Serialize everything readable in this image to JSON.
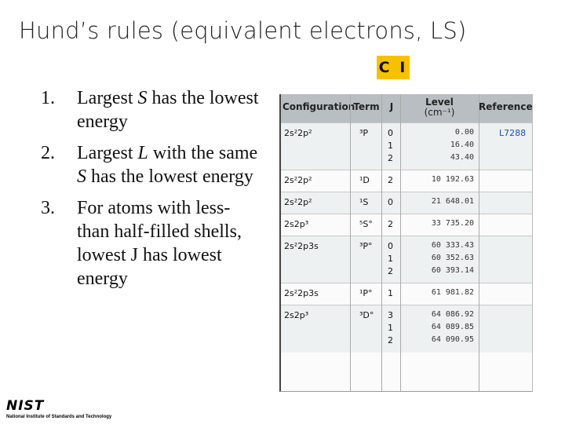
{
  "slide": {
    "title": "Hund’s rules (equivalent electrons, LS)",
    "element_badge": "C I",
    "badge_color": "#f6c200"
  },
  "rules": [
    {
      "num": "1.",
      "pre": "Largest ",
      "var": "S",
      "post": " has the lowest energy"
    },
    {
      "num": "2.",
      "pre": "Largest ",
      "var": "L",
      "mid": " with the same ",
      "var2": "S",
      "post": " has the lowest energy"
    },
    {
      "num": "3.",
      "text": "For atoms with less-than half-filled shells, lowest J has lowest energy"
    }
  ],
  "table": {
    "headers": {
      "configuration": "Configuration",
      "term": "Term",
      "j": "J",
      "level": "Level",
      "level_unit": "(cm⁻¹)",
      "reference": "Reference"
    },
    "rows": [
      {
        "config": "2s²2p²",
        "term": "³P",
        "j": [
          "0",
          "1",
          "2"
        ],
        "level": [
          "0.00",
          "16.40",
          "43.40"
        ],
        "ref": "L7288"
      },
      {
        "config": "2s²2p²",
        "term": "¹D",
        "j": [
          "2"
        ],
        "level": [
          "10 192.63"
        ],
        "ref": ""
      },
      {
        "config": "2s²2p²",
        "term": "¹S",
        "j": [
          "0"
        ],
        "level": [
          "21 648.01"
        ],
        "ref": ""
      },
      {
        "config": "2s2p³",
        "term": "⁵S°",
        "j": [
          "2"
        ],
        "level": [
          "33 735.20"
        ],
        "ref": ""
      },
      {
        "config": "2s²2p3s",
        "term": "³P°",
        "j": [
          "0",
          "1",
          "2"
        ],
        "level": [
          "60 333.43",
          "60 352.63",
          "60 393.14"
        ],
        "ref": ""
      },
      {
        "config": "2s²2p3s",
        "term": "¹P°",
        "j": [
          "1"
        ],
        "level": [
          "61 981.82"
        ],
        "ref": ""
      },
      {
        "config": "2s2p³",
        "term": "³D°",
        "j": [
          "3",
          "1",
          "2"
        ],
        "level": [
          "64 086.92",
          "64 089.85",
          "64 090.95"
        ],
        "ref": ""
      }
    ],
    "header_color": "#b8bec2",
    "reference_link_color": "#1d50b8"
  },
  "logo": {
    "name": "NIST",
    "subtitle": "National Institute of Standards and Technology"
  }
}
